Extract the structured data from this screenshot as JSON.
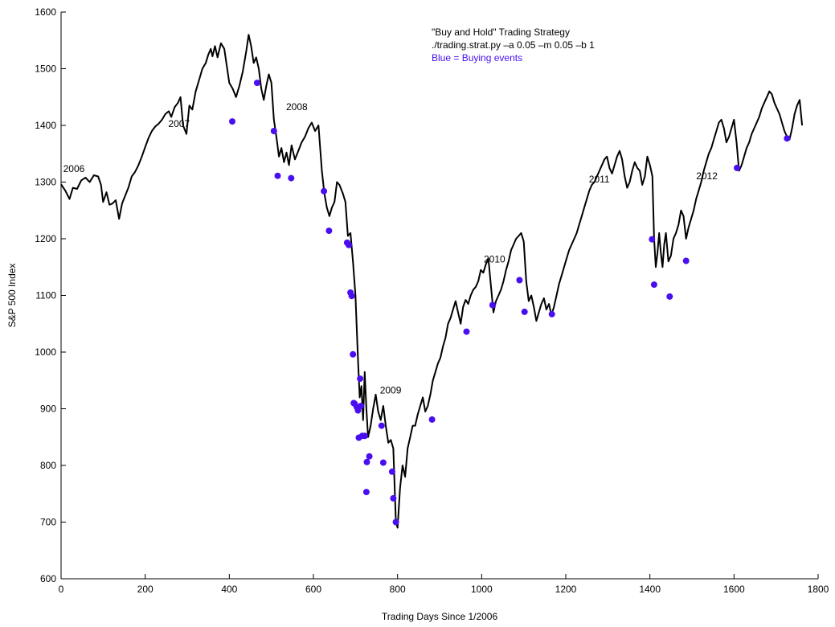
{
  "chart_data": {
    "type": "line",
    "title": "\"Buy and Hold\" Trading Strategy",
    "subtitle": "./trading.strat.py –a 0.05 –m 0.05 –b 1",
    "legend_note": "Blue = Buying events",
    "xlabel": "Trading Days Since 1/2006",
    "ylabel": "S&P 500 Index",
    "xlim": [
      0,
      1800
    ],
    "ylim": [
      600,
      1600
    ],
    "x_ticks": [
      0,
      200,
      400,
      600,
      800,
      1000,
      1200,
      1400,
      1600,
      1800
    ],
    "y_ticks": [
      600,
      700,
      800,
      900,
      1000,
      1100,
      1200,
      1300,
      1400,
      1500,
      1600
    ],
    "grid": false,
    "colors": {
      "line": "#000000",
      "buy_events": "#4a0ff0",
      "axis": "#000000"
    },
    "year_annotations": [
      {
        "text": "2006",
        "x": 5,
        "y": 1318
      },
      {
        "text": "2007",
        "x": 255,
        "y": 1397
      },
      {
        "text": "2008",
        "x": 535,
        "y": 1427
      },
      {
        "text": "2009",
        "x": 758,
        "y": 927
      },
      {
        "text": "2010",
        "x": 1005,
        "y": 1158
      },
      {
        "text": "2011",
        "x": 1255,
        "y": 1299
      },
      {
        "text": "2012",
        "x": 1510,
        "y": 1305
      }
    ],
    "series": [
      {
        "values": [
          [
            0,
            1296
          ],
          [
            10,
            1285
          ],
          [
            20,
            1270
          ],
          [
            28,
            1290
          ],
          [
            38,
            1288
          ],
          [
            48,
            1303
          ],
          [
            58,
            1308
          ],
          [
            68,
            1300
          ],
          [
            78,
            1312
          ],
          [
            88,
            1310
          ],
          [
            95,
            1295
          ],
          [
            100,
            1265
          ],
          [
            108,
            1282
          ],
          [
            115,
            1260
          ],
          [
            122,
            1262
          ],
          [
            130,
            1268
          ],
          [
            138,
            1235
          ],
          [
            145,
            1262
          ],
          [
            152,
            1275
          ],
          [
            160,
            1290
          ],
          [
            168,
            1310
          ],
          [
            176,
            1318
          ],
          [
            184,
            1330
          ],
          [
            192,
            1345
          ],
          [
            200,
            1362
          ],
          [
            208,
            1378
          ],
          [
            216,
            1390
          ],
          [
            224,
            1398
          ],
          [
            232,
            1403
          ],
          [
            240,
            1410
          ],
          [
            248,
            1420
          ],
          [
            256,
            1425
          ],
          [
            262,
            1415
          ],
          [
            270,
            1432
          ],
          [
            278,
            1440
          ],
          [
            284,
            1450
          ],
          [
            290,
            1400
          ],
          [
            298,
            1385
          ],
          [
            305,
            1435
          ],
          [
            312,
            1428
          ],
          [
            320,
            1460
          ],
          [
            328,
            1480
          ],
          [
            336,
            1500
          ],
          [
            344,
            1510
          ],
          [
            350,
            1525
          ],
          [
            356,
            1535
          ],
          [
            360,
            1522
          ],
          [
            366,
            1540
          ],
          [
            372,
            1520
          ],
          [
            380,
            1545
          ],
          [
            388,
            1535
          ],
          [
            394,
            1505
          ],
          [
            400,
            1475
          ],
          [
            408,
            1465
          ],
          [
            416,
            1450
          ],
          [
            424,
            1470
          ],
          [
            432,
            1495
          ],
          [
            440,
            1530
          ],
          [
            446,
            1560
          ],
          [
            452,
            1540
          ],
          [
            458,
            1510
          ],
          [
            464,
            1520
          ],
          [
            470,
            1500
          ],
          [
            476,
            1465
          ],
          [
            482,
            1445
          ],
          [
            488,
            1470
          ],
          [
            494,
            1490
          ],
          [
            500,
            1475
          ],
          [
            506,
            1410
          ],
          [
            512,
            1380
          ],
          [
            518,
            1345
          ],
          [
            524,
            1360
          ],
          [
            530,
            1335
          ],
          [
            536,
            1352
          ],
          [
            542,
            1330
          ],
          [
            548,
            1365
          ],
          [
            556,
            1340
          ],
          [
            564,
            1355
          ],
          [
            572,
            1370
          ],
          [
            580,
            1380
          ],
          [
            588,
            1395
          ],
          [
            596,
            1405
          ],
          [
            604,
            1390
          ],
          [
            612,
            1400
          ],
          [
            620,
            1320
          ],
          [
            626,
            1280
          ],
          [
            632,
            1255
          ],
          [
            638,
            1240
          ],
          [
            644,
            1255
          ],
          [
            650,
            1265
          ],
          [
            656,
            1300
          ],
          [
            662,
            1295
          ],
          [
            670,
            1280
          ],
          [
            676,
            1265
          ],
          [
            682,
            1205
          ],
          [
            688,
            1210
          ],
          [
            694,
            1160
          ],
          [
            700,
            1100
          ],
          [
            706,
            985
          ],
          [
            710,
            920
          ],
          [
            714,
            940
          ],
          [
            718,
            880
          ],
          [
            722,
            965
          ],
          [
            726,
            900
          ],
          [
            730,
            850
          ],
          [
            736,
            870
          ],
          [
            742,
            900
          ],
          [
            748,
            925
          ],
          [
            754,
            895
          ],
          [
            760,
            880
          ],
          [
            766,
            905
          ],
          [
            772,
            870
          ],
          [
            778,
            840
          ],
          [
            784,
            845
          ],
          [
            790,
            830
          ],
          [
            796,
            700
          ],
          [
            800,
            690
          ],
          [
            806,
            760
          ],
          [
            812,
            800
          ],
          [
            818,
            780
          ],
          [
            824,
            830
          ],
          [
            830,
            850
          ],
          [
            836,
            870
          ],
          [
            842,
            870
          ],
          [
            848,
            890
          ],
          [
            854,
            905
          ],
          [
            860,
            920
          ],
          [
            866,
            895
          ],
          [
            872,
            905
          ],
          [
            878,
            925
          ],
          [
            884,
            950
          ],
          [
            890,
            965
          ],
          [
            896,
            980
          ],
          [
            902,
            990
          ],
          [
            908,
            1010
          ],
          [
            914,
            1025
          ],
          [
            920,
            1050
          ],
          [
            926,
            1060
          ],
          [
            932,
            1075
          ],
          [
            938,
            1090
          ],
          [
            944,
            1070
          ],
          [
            950,
            1050
          ],
          [
            956,
            1080
          ],
          [
            962,
            1092
          ],
          [
            968,
            1085
          ],
          [
            974,
            1100
          ],
          [
            980,
            1110
          ],
          [
            986,
            1115
          ],
          [
            992,
            1125
          ],
          [
            998,
            1145
          ],
          [
            1004,
            1140
          ],
          [
            1010,
            1155
          ],
          [
            1016,
            1165
          ],
          [
            1022,
            1118
          ],
          [
            1028,
            1070
          ],
          [
            1034,
            1090
          ],
          [
            1040,
            1100
          ],
          [
            1046,
            1110
          ],
          [
            1052,
            1125
          ],
          [
            1058,
            1145
          ],
          [
            1064,
            1160
          ],
          [
            1070,
            1180
          ],
          [
            1076,
            1190
          ],
          [
            1082,
            1200
          ],
          [
            1088,
            1205
          ],
          [
            1094,
            1210
          ],
          [
            1100,
            1195
          ],
          [
            1106,
            1125
          ],
          [
            1112,
            1090
          ],
          [
            1118,
            1100
          ],
          [
            1124,
            1080
          ],
          [
            1130,
            1055
          ],
          [
            1136,
            1070
          ],
          [
            1142,
            1085
          ],
          [
            1148,
            1095
          ],
          [
            1154,
            1075
          ],
          [
            1160,
            1085
          ],
          [
            1166,
            1065
          ],
          [
            1172,
            1080
          ],
          [
            1178,
            1100
          ],
          [
            1184,
            1120
          ],
          [
            1190,
            1135
          ],
          [
            1196,
            1150
          ],
          [
            1202,
            1165
          ],
          [
            1208,
            1180
          ],
          [
            1214,
            1190
          ],
          [
            1220,
            1200
          ],
          [
            1226,
            1210
          ],
          [
            1232,
            1225
          ],
          [
            1238,
            1240
          ],
          [
            1244,
            1255
          ],
          [
            1250,
            1270
          ],
          [
            1256,
            1285
          ],
          [
            1262,
            1295
          ],
          [
            1268,
            1300
          ],
          [
            1274,
            1310
          ],
          [
            1280,
            1320
          ],
          [
            1286,
            1330
          ],
          [
            1292,
            1340
          ],
          [
            1298,
            1345
          ],
          [
            1304,
            1325
          ],
          [
            1310,
            1315
          ],
          [
            1316,
            1330
          ],
          [
            1322,
            1345
          ],
          [
            1328,
            1355
          ],
          [
            1334,
            1340
          ],
          [
            1340,
            1310
          ],
          [
            1346,
            1290
          ],
          [
            1352,
            1300
          ],
          [
            1358,
            1320
          ],
          [
            1364,
            1335
          ],
          [
            1370,
            1325
          ],
          [
            1376,
            1320
          ],
          [
            1382,
            1295
          ],
          [
            1388,
            1310
          ],
          [
            1394,
            1345
          ],
          [
            1400,
            1330
          ],
          [
            1406,
            1310
          ],
          [
            1410,
            1200
          ],
          [
            1414,
            1150
          ],
          [
            1418,
            1175
          ],
          [
            1422,
            1210
          ],
          [
            1426,
            1175
          ],
          [
            1430,
            1150
          ],
          [
            1434,
            1190
          ],
          [
            1438,
            1210
          ],
          [
            1444,
            1160
          ],
          [
            1450,
            1170
          ],
          [
            1456,
            1200
          ],
          [
            1462,
            1210
          ],
          [
            1468,
            1225
          ],
          [
            1474,
            1250
          ],
          [
            1480,
            1240
          ],
          [
            1486,
            1200
          ],
          [
            1492,
            1220
          ],
          [
            1498,
            1235
          ],
          [
            1504,
            1250
          ],
          [
            1510,
            1270
          ],
          [
            1516,
            1285
          ],
          [
            1522,
            1300
          ],
          [
            1528,
            1320
          ],
          [
            1534,
            1335
          ],
          [
            1540,
            1350
          ],
          [
            1546,
            1360
          ],
          [
            1552,
            1375
          ],
          [
            1558,
            1390
          ],
          [
            1564,
            1405
          ],
          [
            1570,
            1410
          ],
          [
            1576,
            1395
          ],
          [
            1582,
            1370
          ],
          [
            1588,
            1380
          ],
          [
            1594,
            1395
          ],
          [
            1600,
            1410
          ],
          [
            1606,
            1370
          ],
          [
            1612,
            1320
          ],
          [
            1618,
            1330
          ],
          [
            1624,
            1345
          ],
          [
            1630,
            1360
          ],
          [
            1636,
            1370
          ],
          [
            1642,
            1385
          ],
          [
            1648,
            1395
          ],
          [
            1654,
            1405
          ],
          [
            1660,
            1415
          ],
          [
            1666,
            1430
          ],
          [
            1672,
            1440
          ],
          [
            1678,
            1450
          ],
          [
            1684,
            1460
          ],
          [
            1690,
            1455
          ],
          [
            1696,
            1440
          ],
          [
            1702,
            1430
          ],
          [
            1708,
            1420
          ],
          [
            1714,
            1405
          ],
          [
            1720,
            1390
          ],
          [
            1726,
            1380
          ],
          [
            1732,
            1375
          ],
          [
            1738,
            1395
          ],
          [
            1744,
            1420
          ],
          [
            1750,
            1435
          ],
          [
            1756,
            1445
          ],
          [
            1762,
            1400
          ]
        ]
      }
    ],
    "buy_events": [
      [
        407,
        1407
      ],
      [
        466,
        1475
      ],
      [
        506,
        1390
      ],
      [
        515,
        1311
      ],
      [
        547,
        1307
      ],
      [
        625,
        1284
      ],
      [
        637,
        1214
      ],
      [
        680,
        1193
      ],
      [
        684,
        1189
      ],
      [
        688,
        1105
      ],
      [
        691,
        1099
      ],
      [
        694,
        996
      ],
      [
        696,
        910
      ],
      [
        698,
        909
      ],
      [
        703,
        903
      ],
      [
        706,
        897
      ],
      [
        708,
        849
      ],
      [
        711,
        953
      ],
      [
        713,
        905
      ],
      [
        716,
        852
      ],
      [
        722,
        852
      ],
      [
        726,
        753
      ],
      [
        727,
        806
      ],
      [
        733,
        816
      ],
      [
        762,
        870
      ],
      [
        766,
        805
      ],
      [
        787,
        789
      ],
      [
        790,
        742
      ],
      [
        796,
        700
      ],
      [
        882,
        881
      ],
      [
        964,
        1036
      ],
      [
        1026,
        1083
      ],
      [
        1090,
        1127
      ],
      [
        1102,
        1071
      ],
      [
        1167,
        1067
      ],
      [
        1405,
        1199
      ],
      [
        1410,
        1119
      ],
      [
        1447,
        1098
      ],
      [
        1486,
        1161
      ],
      [
        1607,
        1325
      ],
      [
        1726,
        1377
      ]
    ]
  }
}
